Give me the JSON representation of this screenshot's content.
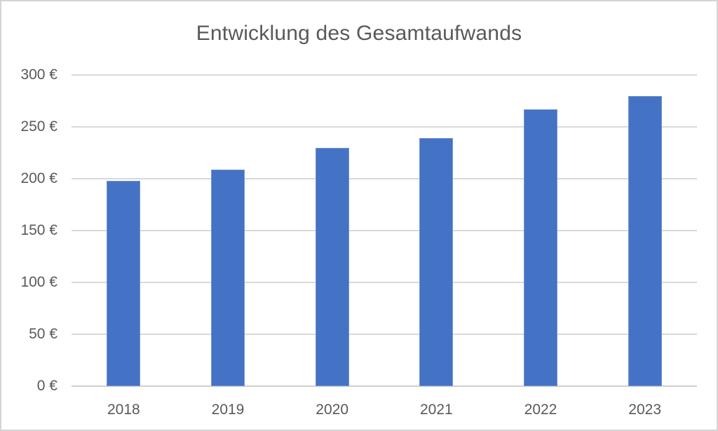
{
  "chart_data": {
    "type": "bar",
    "title": "Entwicklung des Gesamtaufwands",
    "categories": [
      "2018",
      "2019",
      "2020",
      "2021",
      "2022",
      "2023"
    ],
    "values": [
      198,
      209,
      230,
      239,
      267,
      280
    ],
    "unit": "€",
    "xlabel": "",
    "ylabel": "",
    "ylim": [
      0,
      300
    ],
    "ytick_values": [
      0,
      50,
      100,
      150,
      200,
      250,
      300
    ],
    "ytick_labels": [
      "0 €",
      "50 €",
      "100 €",
      "150 €",
      "200 €",
      "250 €",
      "300 €"
    ],
    "grid": true,
    "legend": "none",
    "colors": {
      "bar": "#4472C4",
      "gridline": "#D9D9D9",
      "axis_text": "#595959",
      "title_text": "#595959",
      "frame_border": "#D4D4D4",
      "background": "#FFFFFF"
    }
  }
}
